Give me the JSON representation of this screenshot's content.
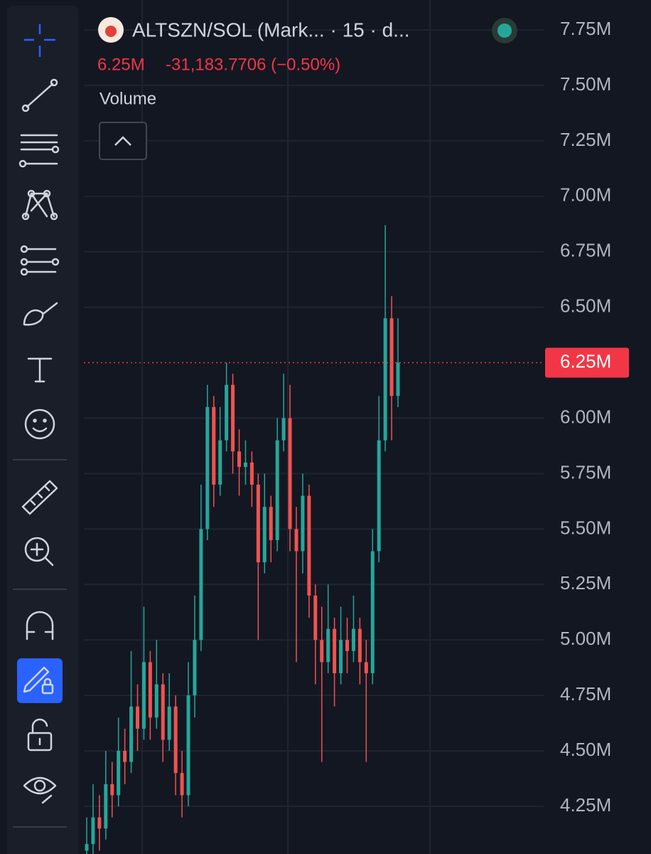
{
  "header": {
    "symbol": "ALTSZN/SOL (Mark... · 15 · d...",
    "price": "6.25M",
    "change": "-31,183.7706 (−0.50%)",
    "indicator": "Volume"
  },
  "chart_data": {
    "type": "candlestick",
    "ylim": [
      4035000,
      7885000
    ],
    "yticks": [
      {
        "value": 4250000,
        "label": "4.25M"
      },
      {
        "value": 4500000,
        "label": "4.50M"
      },
      {
        "value": 4750000,
        "label": "4.75M"
      },
      {
        "value": 5000000,
        "label": "5.00M"
      },
      {
        "value": 5250000,
        "label": "5.25M"
      },
      {
        "value": 5500000,
        "label": "5.50M"
      },
      {
        "value": 5750000,
        "label": "5.75M"
      },
      {
        "value": 6000000,
        "label": "6.00M"
      },
      {
        "value": 6500000,
        "label": "6.50M"
      },
      {
        "value": 6750000,
        "label": "6.75M"
      },
      {
        "value": 7000000,
        "label": "7.00M"
      },
      {
        "value": 7250000,
        "label": "7.25M"
      },
      {
        "value": 7500000,
        "label": "7.50M"
      },
      {
        "value": 7750000,
        "label": "7.75M"
      }
    ],
    "last_price": {
      "value": 6250000,
      "label": "6.25M"
    },
    "up_color": "#26a69a",
    "down_color": "#ef5350",
    "grid": true,
    "open": [
      4050000,
      4080000,
      4200000,
      4150000,
      4350000,
      4300000,
      4500000,
      4450000,
      4700000,
      4600000,
      4900000,
      4650000,
      4800000,
      4550000,
      4700000,
      4400000,
      4300000,
      4750000,
      5000000,
      5500000,
      6050000,
      5700000,
      5900000,
      6150000,
      5850000,
      5780000,
      5800000,
      5700000,
      5350000,
      5600000,
      5450000,
      5900000,
      6000000,
      5500000,
      5400000,
      5650000,
      5200000,
      5000000,
      4900000,
      5050000,
      4850000,
      5000000,
      4950000,
      5050000,
      4900000,
      4850000,
      5400000,
      5900000,
      6450000,
      6100000
    ],
    "high": [
      4200000,
      4350000,
      4300000,
      4500000,
      4450000,
      4650000,
      4600000,
      4950000,
      4800000,
      5150000,
      4950000,
      5000000,
      4850000,
      4850000,
      4750000,
      4500000,
      4900000,
      5200000,
      5700000,
      6150000,
      6100000,
      6050000,
      6250000,
      6200000,
      5950000,
      5900000,
      5850000,
      5750000,
      5750000,
      5650000,
      6000000,
      6200000,
      6150000,
      5600000,
      5750000,
      5700000,
      5250000,
      5150000,
      5250000,
      5100000,
      5150000,
      5100000,
      5200000,
      5100000,
      5000000,
      5500000,
      6100000,
      6870000,
      6550000,
      6450000
    ],
    "low": [
      4000000,
      4030000,
      4050000,
      4100000,
      4200000,
      4250000,
      4350000,
      4400000,
      4500000,
      4550000,
      4550000,
      4600000,
      4450000,
      4500000,
      4300000,
      4200000,
      4250000,
      4650000,
      4950000,
      5450000,
      5600000,
      5650000,
      5850000,
      5750000,
      5650000,
      5700000,
      5600000,
      5000000,
      5300000,
      5350000,
      5400000,
      5850000,
      5400000,
      4900000,
      5300000,
      5100000,
      4800000,
      4450000,
      4850000,
      4700000,
      4800000,
      4850000,
      4900000,
      4800000,
      4450000,
      4800000,
      5350000,
      5850000,
      5900000,
      6050000
    ],
    "close": [
      4080000,
      4200000,
      4150000,
      4350000,
      4300000,
      4500000,
      4450000,
      4700000,
      4600000,
      4900000,
      4650000,
      4800000,
      4550000,
      4700000,
      4400000,
      4300000,
      4750000,
      5000000,
      5500000,
      6050000,
      5700000,
      5900000,
      6150000,
      5850000,
      5780000,
      5800000,
      5700000,
      5350000,
      5600000,
      5450000,
      5900000,
      6000000,
      5500000,
      5400000,
      5650000,
      5200000,
      5000000,
      4900000,
      5050000,
      4850000,
      5000000,
      4950000,
      5050000,
      4900000,
      4850000,
      5400000,
      5900000,
      6450000,
      6100000,
      6250000
    ]
  }
}
